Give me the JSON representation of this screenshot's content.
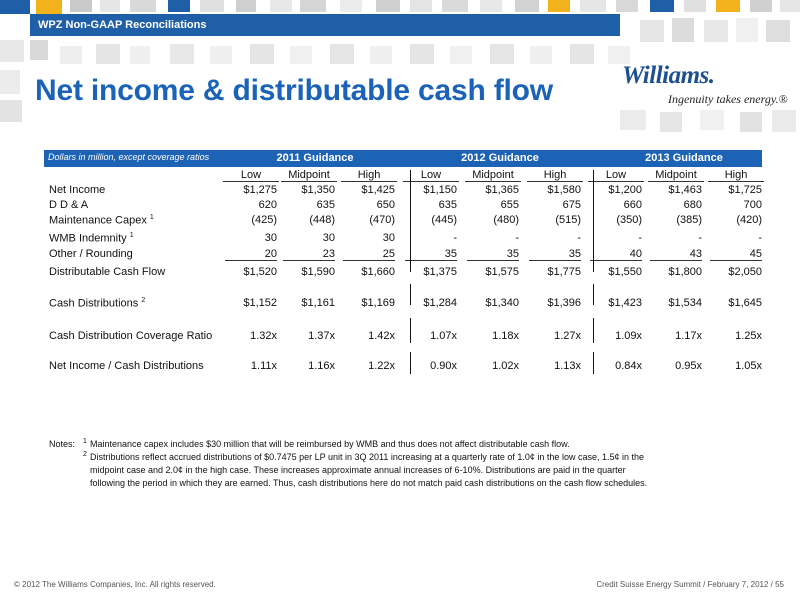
{
  "banner": "WPZ Non-GAAP Reconciliations",
  "title": "Net income & distributable cash flow",
  "logo": {
    "word": "Williams.",
    "tagline": "Ingenuity takes energy.®"
  },
  "table": {
    "units_label": "Dollars in million, except coverage ratios",
    "groups": [
      "2011 Guidance",
      "2012 Guidance",
      "2013 Guidance"
    ],
    "columns": [
      "Low",
      "Midpoint",
      "High",
      "Low",
      "Midpoint",
      "High",
      "Low",
      "Midpoint",
      "High"
    ],
    "rows": [
      {
        "label": "Net Income",
        "sup": "",
        "values": [
          "$1,275",
          "$1,350",
          "$1,425",
          "$1,150",
          "$1,365",
          "$1,580",
          "$1,200",
          "$1,463",
          "$1,725"
        ]
      },
      {
        "label": "D D & A",
        "sup": "",
        "values": [
          "620",
          "635",
          "650",
          "635",
          "655",
          "675",
          "660",
          "680",
          "700"
        ]
      },
      {
        "label": "Maintenance Capex",
        "sup": "1",
        "values": [
          "(425)",
          "(448)",
          "(470)",
          "(445)",
          "(480)",
          "(515)",
          "(350)",
          "(385)",
          "(420)"
        ]
      },
      {
        "label": "WMB Indemnity",
        "sup": "1",
        "values": [
          "30",
          "30",
          "30",
          "-",
          "-",
          "-",
          "-",
          "-",
          "-"
        ]
      },
      {
        "label": "Other / Rounding",
        "sup": "",
        "values": [
          "20",
          "23",
          "25",
          "35",
          "35",
          "35",
          "40",
          "43",
          "45"
        ]
      },
      {
        "label": "Distributable Cash Flow",
        "sup": "",
        "values": [
          "$1,520",
          "$1,590",
          "$1,660",
          "$1,375",
          "$1,575",
          "$1,775",
          "$1,550",
          "$1,800",
          "$2,050"
        ]
      },
      {
        "label": "Cash Distributions",
        "sup": "2",
        "values": [
          "$1,152",
          "$1,161",
          "$1,169",
          "$1,284",
          "$1,340",
          "$1,396",
          "$1,423",
          "$1,534",
          "$1,645"
        ]
      },
      {
        "label": "Cash Distribution Coverage Ratio",
        "sup": "",
        "values": [
          "1.32x",
          "1.37x",
          "1.42x",
          "1.07x",
          "1.18x",
          "1.27x",
          "1.09x",
          "1.17x",
          "1.25x"
        ]
      },
      {
        "label": "Net Income / Cash Distributions",
        "sup": "",
        "values": [
          "1.11x",
          "1.16x",
          "1.22x",
          "0.90x",
          "1.02x",
          "1.13x",
          "0.84x",
          "0.95x",
          "1.05x"
        ]
      }
    ]
  },
  "notes": {
    "prefix": "Notes:",
    "n1_sup": "1",
    "n1": "Maintenance capex includes $30 million that will be reimbursed by WMB and thus does not affect distributable cash flow.",
    "n2_sup": "2",
    "n2_l1": "Distributions reflect accrued distributions of $0.7475 per LP unit in 3Q 2011 increasing at a quarterly rate of 1.0¢ in the low case, 1.5¢ in the",
    "n2_l2": "midpoint case and 2.0¢ in the high case.  These increases approximate annual increases of 6-10%.   Distributions are paid in the quarter",
    "n2_l3": "following the period in which they are earned.  Thus, cash distributions here do not match paid cash distributions on the cash flow schedules."
  },
  "footer": {
    "left": "© 2012 The Williams Companies, Inc. All rights reserved.",
    "right": "Credit Suisse Energy Summit / February 7, 2012 /   55"
  },
  "colors": {
    "accent": "#1c62b5",
    "title": "#1b63b8"
  }
}
